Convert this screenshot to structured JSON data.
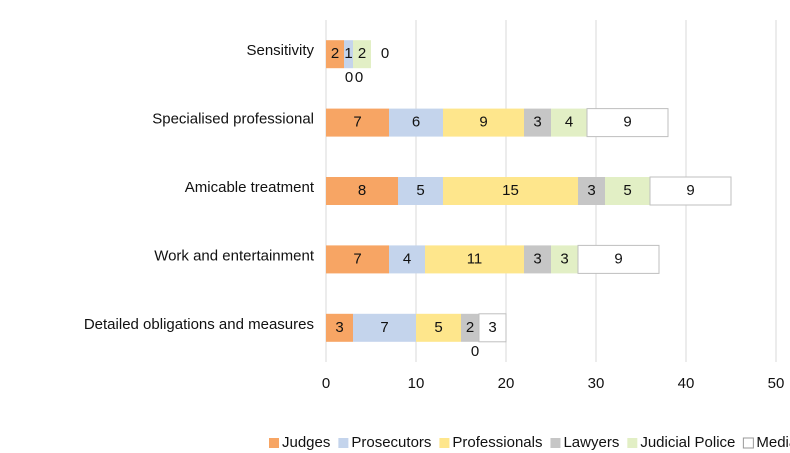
{
  "chart_data": {
    "type": "stacked_barh",
    "categories": [
      "Sensitivity",
      "Specialised professional",
      "Amicable treatment",
      "Work and entertainment",
      "Detailed obligations and measures"
    ],
    "series": [
      {
        "name": "Judges",
        "color": "#f7a564",
        "values": [
          2,
          7,
          8,
          7,
          3
        ]
      },
      {
        "name": "Prosecutors",
        "color": "#c4d4ec",
        "values": [
          1,
          6,
          5,
          4,
          7
        ]
      },
      {
        "name": "Professionals",
        "color": "#fee68c",
        "values": [
          0,
          9,
          15,
          11,
          5
        ]
      },
      {
        "name": "Lawyers",
        "color": "#c6c6c6",
        "values": [
          0,
          3,
          3,
          3,
          2
        ]
      },
      {
        "name": "Judicial Police",
        "color": "#e2efc5",
        "values": [
          2,
          4,
          5,
          3,
          0
        ]
      },
      {
        "name": "Mediators",
        "color": "#ffffff",
        "values": [
          0,
          9,
          9,
          9,
          3
        ]
      }
    ],
    "xlim": [
      0,
      50
    ],
    "xticks": [
      0,
      10,
      20,
      30,
      40,
      50
    ],
    "grid": true,
    "legend": "bottom"
  }
}
